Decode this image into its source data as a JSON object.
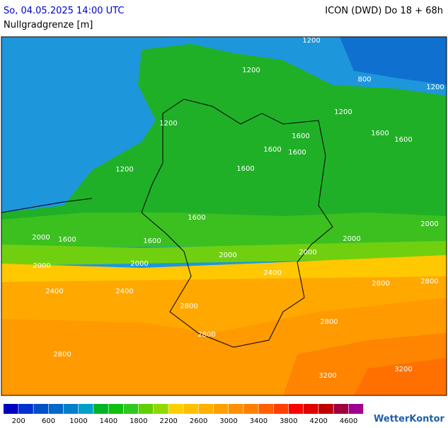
{
  "header": {
    "datetime": "So, 04.05.2025 14:00 UTC",
    "model": "ICON (DWD) Do 18 + 68h",
    "parameter": "Nullgradgrenze [m]"
  },
  "map": {
    "contour_labels": [
      1200,
      1200,
      800,
      1200,
      1200,
      1200,
      1600,
      1600,
      1600,
      1600,
      1600,
      1200,
      1600,
      1600,
      1600,
      1600,
      2000,
      2000,
      2000,
      2000,
      2000,
      2000,
      2000,
      2400,
      2800,
      2800,
      2400,
      2400,
      2800,
      2800,
      2800,
      2800,
      3200,
      3200
    ]
  },
  "colorbar": {
    "colors": [
      "#0000c0",
      "#0030d0",
      "#0050c8",
      "#0068c8",
      "#0080c8",
      "#00a0c8",
      "#00b428",
      "#10c010",
      "#30c820",
      "#60d000",
      "#90d800",
      "#ffd000",
      "#ffc000",
      "#ffb000",
      "#ffa000",
      "#ff9000",
      "#ff8000",
      "#ff6000",
      "#ff4000",
      "#ff0000",
      "#e00000",
      "#c00000",
      "#a00040",
      "#a00090"
    ],
    "labels": [
      200,
      600,
      1000,
      1400,
      1800,
      2200,
      2600,
      3000,
      3400,
      3800,
      4200,
      4600
    ]
  },
  "logo": "WetterKontor"
}
